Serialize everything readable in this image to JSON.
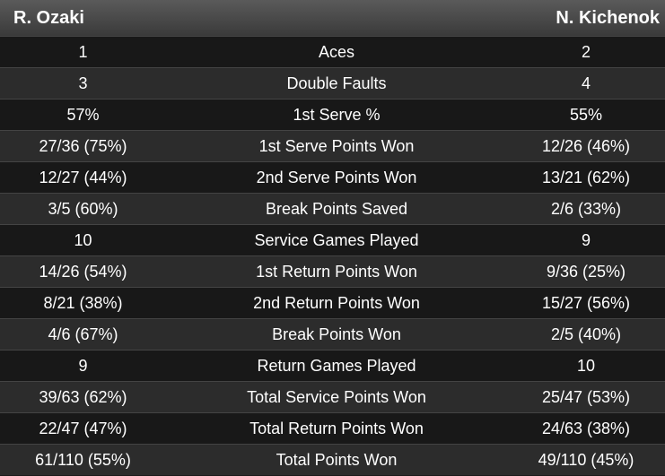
{
  "header": {
    "left": "R. Ozaki",
    "right": "N. Kichenok"
  },
  "table": {
    "rows": [
      [
        "1",
        "Aces",
        "2"
      ],
      [
        "3",
        "Double Faults",
        "4"
      ],
      [
        "57%",
        "1st Serve %",
        "55%"
      ],
      [
        "27/36 (75%)",
        "1st Serve Points Won",
        "12/26 (46%)"
      ],
      [
        "12/27 (44%)",
        "2nd Serve Points Won",
        "13/21 (62%)"
      ],
      [
        "3/5 (60%)",
        "Break Points Saved",
        "2/6 (33%)"
      ],
      [
        "10",
        "Service Games Played",
        "9"
      ],
      [
        "14/26 (54%)",
        "1st Return Points Won",
        "9/36 (25%)"
      ],
      [
        "8/21 (38%)",
        "2nd Return Points Won",
        "15/27 (56%)"
      ],
      [
        "4/6 (67%)",
        "Break Points Won",
        "2/5 (40%)"
      ],
      [
        "9",
        "Return Games Played",
        "10"
      ],
      [
        "39/63 (62%)",
        "Total Service Points Won",
        "25/47 (53%)"
      ],
      [
        "22/47 (47%)",
        "Total Return Points Won",
        "24/63 (38%)"
      ],
      [
        "61/110 (55%)",
        "Total Points Won",
        "49/110 (45%)"
      ]
    ]
  }
}
